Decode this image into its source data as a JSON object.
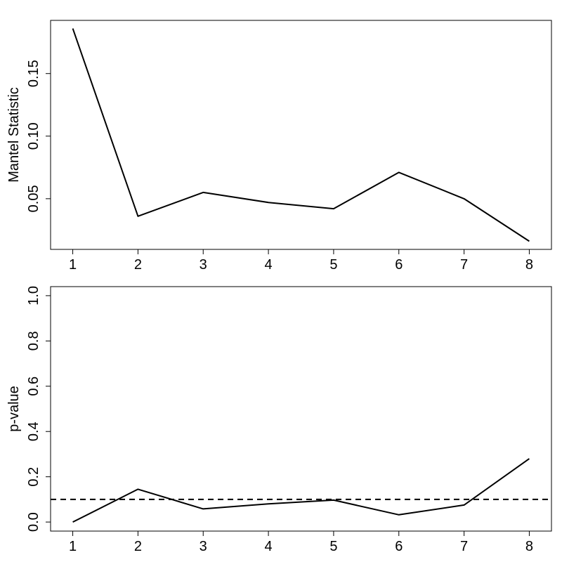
{
  "chart_data": [
    {
      "type": "line",
      "title": "",
      "xlabel": "",
      "ylabel": "Mantel Statistic",
      "x": [
        1,
        2,
        3,
        4,
        5,
        6,
        7,
        8
      ],
      "xticks": [
        "1",
        "2",
        "3",
        "4",
        "5",
        "6",
        "7",
        "8"
      ],
      "xlim": [
        0.66,
        8.34
      ],
      "ylim": [
        0.0095,
        0.1925
      ],
      "yticks": [
        0.05,
        0.1,
        0.15
      ],
      "ytick_labels": [
        "0.05",
        "0.10",
        "0.15"
      ],
      "grid": false,
      "series": [
        {
          "values": [
            0.186,
            0.036,
            0.055,
            0.047,
            0.042,
            0.071,
            0.05,
            0.016
          ],
          "color": "#000000",
          "dash": "solid"
        }
      ]
    },
    {
      "type": "line",
      "title": "",
      "xlabel": "",
      "ylabel": "p-value",
      "x": [
        1,
        2,
        3,
        4,
        5,
        6,
        7,
        8
      ],
      "xticks": [
        "1",
        "2",
        "3",
        "4",
        "5",
        "6",
        "7",
        "8"
      ],
      "xlim": [
        0.66,
        8.34
      ],
      "ylim": [
        -0.04,
        1.04
      ],
      "yticks": [
        0.0,
        0.2,
        0.4,
        0.6,
        0.8,
        1.0
      ],
      "ytick_labels": [
        "0.0",
        "0.2",
        "0.4",
        "0.6",
        "0.8",
        "1.0"
      ],
      "grid": false,
      "series": [
        {
          "values": [
            0.0,
            0.145,
            0.058,
            0.08,
            0.097,
            0.032,
            0.075,
            0.28
          ],
          "color": "#000000",
          "dash": "solid"
        }
      ],
      "reference_lines": [
        {
          "axis": "y",
          "value": 0.1,
          "style": "dashed",
          "color": "#000000"
        }
      ]
    }
  ]
}
